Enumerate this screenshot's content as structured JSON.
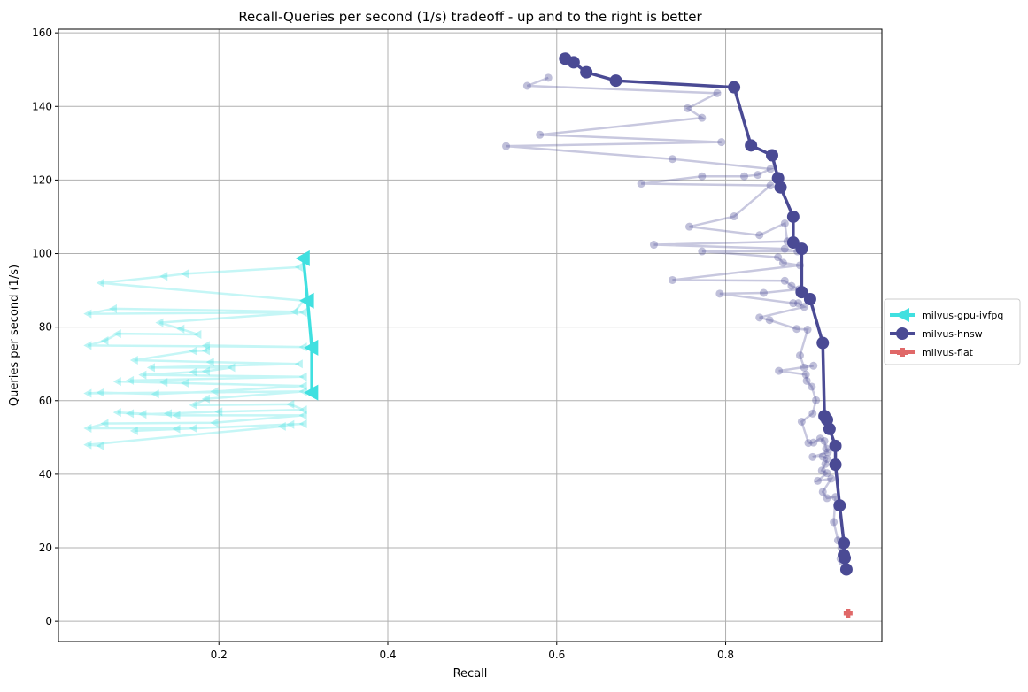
{
  "chart_data": {
    "type": "line",
    "title": "Recall-Queries per second (1/s) tradeoff - up and to the right is better",
    "xlabel": "Recall",
    "ylabel": "Queries per second (1/s)",
    "xlim": [
      0.01,
      0.985
    ],
    "ylim": [
      -5.5,
      161
    ],
    "xticks": [
      0.2,
      0.4,
      0.6,
      0.8
    ],
    "xtick_labels": [
      "0.2",
      "0.4",
      "0.6",
      "0.8"
    ],
    "yticks": [
      0,
      20,
      40,
      60,
      80,
      100,
      120,
      140,
      160
    ],
    "ytick_labels": [
      "0",
      "20",
      "40",
      "60",
      "80",
      "100",
      "120",
      "140",
      "160"
    ],
    "grid": true,
    "legend_position": "outside-right",
    "series": [
      {
        "name": "milvus-gpu-ivfpq",
        "color": "#40e0e0",
        "marker": "triangle-left",
        "frontier": [
          [
            0.3,
            98.7
          ],
          [
            0.305,
            87.2
          ],
          [
            0.31,
            74.4
          ],
          [
            0.31,
            62.2
          ]
        ],
        "points": [
          [
            0.295,
            96.3
          ],
          [
            0.16,
            94.5
          ],
          [
            0.135,
            93.8
          ],
          [
            0.06,
            92.0
          ],
          [
            0.3,
            87.2
          ],
          [
            0.29,
            84.2
          ],
          [
            0.075,
            85.0
          ],
          [
            0.045,
            83.6
          ],
          [
            0.3,
            84.0
          ],
          [
            0.13,
            81.2
          ],
          [
            0.155,
            79.5
          ],
          [
            0.175,
            78.0
          ],
          [
            0.08,
            78.2
          ],
          [
            0.065,
            76.3
          ],
          [
            0.045,
            75.0
          ],
          [
            0.3,
            74.6
          ],
          [
            0.185,
            75.0
          ],
          [
            0.185,
            73.6
          ],
          [
            0.17,
            73.5
          ],
          [
            0.1,
            71.0
          ],
          [
            0.19,
            70.5
          ],
          [
            0.295,
            70.0
          ],
          [
            0.12,
            69.0
          ],
          [
            0.215,
            69.0
          ],
          [
            0.185,
            68.0
          ],
          [
            0.17,
            67.8
          ],
          [
            0.11,
            67.0
          ],
          [
            0.3,
            66.5
          ],
          [
            0.095,
            65.5
          ],
          [
            0.135,
            65.0
          ],
          [
            0.16,
            64.8
          ],
          [
            0.08,
            65.2
          ],
          [
            0.3,
            64.0
          ],
          [
            0.195,
            62.5
          ],
          [
            0.125,
            61.8
          ],
          [
            0.06,
            62.2
          ],
          [
            0.045,
            62.0
          ],
          [
            0.3,
            62.5
          ],
          [
            0.185,
            60.5
          ],
          [
            0.17,
            58.8
          ],
          [
            0.285,
            59.0
          ],
          [
            0.3,
            57.5
          ],
          [
            0.2,
            57.0
          ],
          [
            0.14,
            56.5
          ],
          [
            0.11,
            56.3
          ],
          [
            0.095,
            56.5
          ],
          [
            0.08,
            56.8
          ],
          [
            0.15,
            56.0
          ],
          [
            0.3,
            56.0
          ],
          [
            0.195,
            54.0
          ],
          [
            0.065,
            53.8
          ],
          [
            0.045,
            52.5
          ],
          [
            0.17,
            52.5
          ],
          [
            0.15,
            52.3
          ],
          [
            0.1,
            51.8
          ],
          [
            0.3,
            53.7
          ],
          [
            0.285,
            53.5
          ],
          [
            0.275,
            53.0
          ],
          [
            0.045,
            48.0
          ],
          [
            0.06,
            47.7
          ]
        ]
      },
      {
        "name": "milvus-hnsw",
        "color": "#4a4a94",
        "marker": "circle",
        "frontier": [
          [
            0.61,
            153.0
          ],
          [
            0.62,
            152.0
          ],
          [
            0.635,
            149.3
          ],
          [
            0.67,
            147.0
          ],
          [
            0.81,
            145.2
          ],
          [
            0.83,
            129.4
          ],
          [
            0.855,
            126.7
          ],
          [
            0.862,
            120.5
          ],
          [
            0.865,
            118.0
          ],
          [
            0.88,
            110.0
          ],
          [
            0.88,
            103.0
          ],
          [
            0.89,
            101.3
          ],
          [
            0.89,
            89.5
          ],
          [
            0.9,
            87.6
          ],
          [
            0.915,
            75.7
          ],
          [
            0.917,
            55.8
          ],
          [
            0.92,
            54.8
          ],
          [
            0.923,
            52.3
          ],
          [
            0.93,
            47.7
          ],
          [
            0.93,
            42.6
          ],
          [
            0.935,
            31.5
          ],
          [
            0.94,
            21.3
          ],
          [
            0.94,
            18.0
          ],
          [
            0.941,
            17.2
          ],
          [
            0.943,
            14.1
          ]
        ],
        "points": [
          [
            0.59,
            147.8
          ],
          [
            0.565,
            145.6
          ],
          [
            0.79,
            143.6
          ],
          [
            0.755,
            139.5
          ],
          [
            0.772,
            136.9
          ],
          [
            0.58,
            132.3
          ],
          [
            0.795,
            130.3
          ],
          [
            0.54,
            129.2
          ],
          [
            0.737,
            125.7
          ],
          [
            0.853,
            123.0
          ],
          [
            0.838,
            121.4
          ],
          [
            0.822,
            121.0
          ],
          [
            0.772,
            121.0
          ],
          [
            0.7,
            119.0
          ],
          [
            0.853,
            118.5
          ],
          [
            0.81,
            110.1
          ],
          [
            0.757,
            107.3
          ],
          [
            0.84,
            105.0
          ],
          [
            0.87,
            108.2
          ],
          [
            0.873,
            103.3
          ],
          [
            0.715,
            102.4
          ],
          [
            0.87,
            101.3
          ],
          [
            0.885,
            100.6
          ],
          [
            0.772,
            100.6
          ],
          [
            0.862,
            99.0
          ],
          [
            0.868,
            97.5
          ],
          [
            0.888,
            96.8
          ],
          [
            0.737,
            92.8
          ],
          [
            0.87,
            92.6
          ],
          [
            0.878,
            91.2
          ],
          [
            0.887,
            90.3
          ],
          [
            0.845,
            89.3
          ],
          [
            0.793,
            89.1
          ],
          [
            0.88,
            86.5
          ],
          [
            0.886,
            86.5
          ],
          [
            0.893,
            85.5
          ],
          [
            0.84,
            82.6
          ],
          [
            0.852,
            81.9
          ],
          [
            0.884,
            79.5
          ],
          [
            0.897,
            79.3
          ],
          [
            0.888,
            72.3
          ],
          [
            0.893,
            69.0
          ],
          [
            0.904,
            69.5
          ],
          [
            0.863,
            68.1
          ],
          [
            0.895,
            67.1
          ],
          [
            0.896,
            65.4
          ],
          [
            0.902,
            63.8
          ],
          [
            0.907,
            60.1
          ],
          [
            0.903,
            56.5
          ],
          [
            0.89,
            54.3
          ],
          [
            0.898,
            48.5
          ],
          [
            0.904,
            48.6
          ],
          [
            0.912,
            49.7
          ],
          [
            0.917,
            49.0
          ],
          [
            0.919,
            47.0
          ],
          [
            0.921,
            46.0
          ],
          [
            0.903,
            44.7
          ],
          [
            0.915,
            44.8
          ],
          [
            0.92,
            44.2
          ],
          [
            0.918,
            42.8
          ],
          [
            0.914,
            41.0
          ],
          [
            0.92,
            40.3
          ],
          [
            0.909,
            38.2
          ],
          [
            0.925,
            38.8
          ],
          [
            0.915,
            35.2
          ],
          [
            0.92,
            33.5
          ],
          [
            0.93,
            33.8
          ],
          [
            0.928,
            27.0
          ],
          [
            0.933,
            22.0
          ],
          [
            0.937,
            20.0
          ],
          [
            0.936,
            17.0
          ],
          [
            0.938,
            16.3
          ]
        ]
      },
      {
        "name": "milvus-flat",
        "color": "#e06868",
        "marker": "plus",
        "points": [
          [
            0.945,
            2.2
          ]
        ]
      }
    ]
  }
}
